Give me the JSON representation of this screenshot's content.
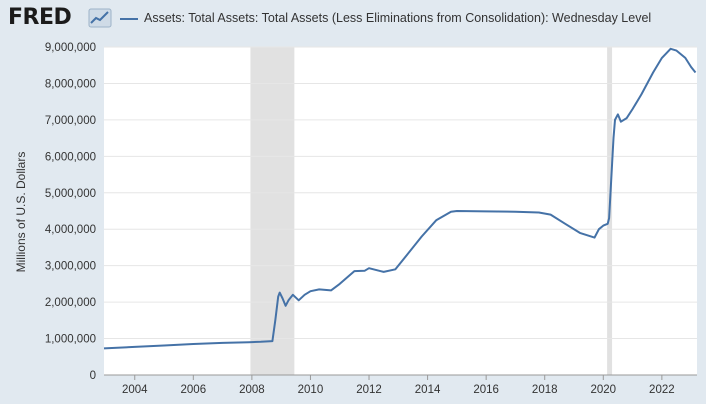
{
  "app": {
    "logo_text": "FRED",
    "logo_icon": "chart-line-icon"
  },
  "colors": {
    "series": "#4572a7",
    "recession": "#e1e1e1",
    "plot_bg": "#ffffff",
    "page_bg": "#e1e9f0",
    "grid": "#e6e6e6"
  },
  "chart_data": {
    "type": "line",
    "title": "",
    "xlabel": "",
    "ylabel": "Millions of U.S. Dollars",
    "xlim": [
      2002.95,
      2023.2
    ],
    "ylim": [
      0,
      9000000
    ],
    "x_ticks": [
      2004,
      2006,
      2008,
      2010,
      2012,
      2014,
      2016,
      2018,
      2020,
      2022
    ],
    "x_tick_labels": [
      "2004",
      "2006",
      "2008",
      "2010",
      "2012",
      "2014",
      "2016",
      "2018",
      "2020",
      "2022"
    ],
    "y_ticks": [
      0,
      1000000,
      2000000,
      3000000,
      4000000,
      5000000,
      6000000,
      7000000,
      8000000,
      9000000
    ],
    "y_tick_labels": [
      "0",
      "1,000,000",
      "2,000,000",
      "3,000,000",
      "4,000,000",
      "5,000,000",
      "6,000,000",
      "7,000,000",
      "8,000,000",
      "9,000,000"
    ],
    "grid": "horizontal",
    "legend_placement": "top",
    "series": [
      {
        "name": "Assets: Total Assets: Total Assets (Less Eliminations from Consolidation): Wednesday Level",
        "x": [
          2002.95,
          2004.0,
          2005.0,
          2006.0,
          2007.0,
          2007.9,
          2008.3,
          2008.7,
          2008.8,
          2008.9,
          2008.95,
          2009.05,
          2009.15,
          2009.25,
          2009.4,
          2009.6,
          2009.8,
          2010.0,
          2010.3,
          2010.7,
          2011.0,
          2011.5,
          2011.85,
          2012.0,
          2012.5,
          2012.9,
          2013.3,
          2013.8,
          2014.3,
          2014.8,
          2015.0,
          2016.0,
          2017.0,
          2017.8,
          2018.2,
          2018.7,
          2019.2,
          2019.7,
          2019.85,
          2020.0,
          2020.15,
          2020.2,
          2020.3,
          2020.35,
          2020.4,
          2020.5,
          2020.6,
          2020.8,
          2021.0,
          2021.3,
          2021.7,
          2022.0,
          2022.3,
          2022.5,
          2022.8,
          2023.0,
          2023.15
        ],
        "values": [
          730000,
          770000,
          810000,
          850000,
          880000,
          900000,
          910000,
          930000,
          1500000,
          2150000,
          2260000,
          2100000,
          1900000,
          2050000,
          2200000,
          2050000,
          2200000,
          2300000,
          2350000,
          2320000,
          2500000,
          2850000,
          2860000,
          2930000,
          2830000,
          2900000,
          3300000,
          3800000,
          4250000,
          4480000,
          4500000,
          4490000,
          4480000,
          4460000,
          4400000,
          4150000,
          3900000,
          3770000,
          4000000,
          4100000,
          4150000,
          4300000,
          5800000,
          6500000,
          7000000,
          7150000,
          6950000,
          7050000,
          7300000,
          7700000,
          8300000,
          8700000,
          8950000,
          8900000,
          8700000,
          8450000,
          8300000
        ]
      }
    ],
    "recessions": [
      [
        2007.95,
        2009.45
      ],
      [
        2020.13,
        2020.3
      ]
    ]
  }
}
